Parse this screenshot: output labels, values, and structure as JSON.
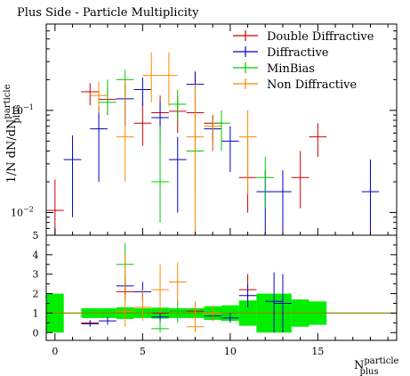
{
  "chart_data": [
    {
      "type": "scatter",
      "title": "Plus Side - Particle Multiplicity",
      "ylabel": "1/N dN/dN",
      "ylabel_sup": "particle",
      "ylabel_sub": "plus",
      "yscale": "log",
      "ylim": [
        0.006,
        0.7
      ],
      "xlim": [
        -0.5,
        19.5
      ],
      "yticks": [
        {
          "value": 0.1,
          "label": "10",
          "exp": "−1"
        },
        {
          "value": 0.01,
          "label": "10",
          "exp": "−2"
        }
      ],
      "legend_position": "top-right",
      "series": [
        {
          "name": "Double Diffractive",
          "color": "#cc0000",
          "points": [
            {
              "x": 0,
              "y": 0.0105,
              "ylo": 0.005,
              "yhi": 0.021
            },
            {
              "x": 2,
              "y": 0.152,
              "ylo": 0.112,
              "yhi": 0.185
            },
            {
              "x": 3,
              "y": 0.128,
              "ylo": 0.09,
              "yhi": 0.165
            },
            {
              "x": 5,
              "y": 0.075,
              "ylo": 0.045,
              "yhi": 0.12
            },
            {
              "x": 6,
              "y": 0.095,
              "ylo": 0.055,
              "yhi": 0.14
            },
            {
              "x": 7,
              "y": 0.098,
              "ylo": 0.06,
              "yhi": 0.14
            },
            {
              "x": 8,
              "y": 0.095,
              "ylo": 0.04,
              "yhi": 0.24
            },
            {
              "x": 9,
              "y": 0.075,
              "ylo": 0.05,
              "yhi": 0.09
            },
            {
              "x": 11,
              "y": 0.022,
              "ylo": 0.01,
              "yhi": 0.055
            },
            {
              "x": 14,
              "y": 0.022,
              "ylo": 0.011,
              "yhi": 0.04
            },
            {
              "x": 15,
              "y": 0.055,
              "ylo": 0.035,
              "yhi": 0.075
            }
          ]
        },
        {
          "name": "Diffractive",
          "color": "#0000cc",
          "points": [
            {
              "x": 1,
              "y": 0.033,
              "ylo": 0.009,
              "yhi": 0.057
            },
            {
              "x": 2.5,
              "y": 0.066,
              "ylo": 0.02,
              "yhi": 0.11
            },
            {
              "x": 4,
              "y": 0.13,
              "ylo": 0.07,
              "yhi": 0.18
            },
            {
              "x": 5,
              "y": 0.16,
              "ylo": 0.11,
              "yhi": 0.21
            },
            {
              "x": 6,
              "y": 0.085,
              "ylo": 0.045,
              "yhi": 0.12
            },
            {
              "x": 7,
              "y": 0.033,
              "ylo": 0.01,
              "yhi": 0.055
            },
            {
              "x": 8,
              "y": 0.18,
              "ylo": 0.12,
              "yhi": 0.24
            },
            {
              "x": 9,
              "y": 0.066,
              "ylo": 0.04,
              "yhi": 0.09
            },
            {
              "x": 10,
              "y": 0.05,
              "ylo": 0.025,
              "yhi": 0.07
            },
            {
              "x": 12,
              "y": 0.016,
              "ylo": 0.006,
              "yhi": 0.026
            },
            {
              "x": 13,
              "y": 0.016,
              "ylo": 0.006,
              "yhi": 0.026
            },
            {
              "x": 18,
              "y": 0.016,
              "ylo": 0.006,
              "yhi": 0.033
            }
          ]
        },
        {
          "name": "MinBias",
          "color": "#00cc00",
          "points": [
            {
              "x": 3,
              "y": 0.12,
              "ylo": 0.09,
              "yhi": 0.2
            },
            {
              "x": 4,
              "y": 0.2,
              "ylo": 0.12,
              "yhi": 0.25
            },
            {
              "x": 6,
              "y": 0.02,
              "ylo": 0.008,
              "yhi": 0.07
            },
            {
              "x": 7,
              "y": 0.115,
              "ylo": 0.08,
              "yhi": 0.16
            },
            {
              "x": 8,
              "y": 0.04,
              "ylo": 0.015,
              "yhi": 0.075
            },
            {
              "x": 9.5,
              "y": 0.075,
              "ylo": 0.04,
              "yhi": 0.1
            },
            {
              "x": 12,
              "y": 0.022,
              "ylo": 0.011,
              "yhi": 0.035
            }
          ]
        },
        {
          "name": "Non Diffractive",
          "color": "#ff8800",
          "points": [
            {
              "x": 2.5,
              "y": 0.14,
              "ylo": 0.095,
              "yhi": 0.19
            },
            {
              "x": 4,
              "y": 0.055,
              "ylo": 0.02,
              "yhi": 0.2
            },
            {
              "x": 5.5,
              "y": 0.22,
              "ylo": 0.12,
              "yhi": 0.37
            },
            {
              "x": 6.5,
              "y": 0.22,
              "ylo": 0.11,
              "yhi": 0.37
            },
            {
              "x": 8,
              "y": 0.055,
              "ylo": 0.006,
              "yhi": 0.18
            },
            {
              "x": 9,
              "y": 0.07,
              "ylo": 0.04,
              "yhi": 0.09
            },
            {
              "x": 11,
              "y": 0.055,
              "ylo": 0.015,
              "yhi": 0.1
            }
          ]
        }
      ]
    },
    {
      "type": "scatter",
      "xlabel": "N",
      "xlabel_sup": "particle",
      "xlabel_sub": "plus",
      "ylim": [
        -0.4,
        5
      ],
      "xlim": [
        -0.5,
        19.5
      ],
      "xticks": [
        0,
        5,
        10,
        15
      ],
      "yticks": [
        0,
        1,
        2,
        3,
        4,
        5
      ],
      "reference_line": 1,
      "reference_color": "#8a8a00",
      "band": {
        "color": "#00ee00",
        "segments": [
          {
            "x0": -0.5,
            "x1": 0.5,
            "lo": 0.0,
            "hi": 2.0
          },
          {
            "x0": 1.5,
            "x1": 2.5,
            "lo": 0.75,
            "hi": 1.25
          },
          {
            "x0": 2.5,
            "x1": 3.5,
            "lo": 0.75,
            "hi": 1.25
          },
          {
            "x0": 3.5,
            "x1": 4.5,
            "lo": 0.7,
            "hi": 1.3
          },
          {
            "x0": 4.5,
            "x1": 5.5,
            "lo": 0.75,
            "hi": 1.25
          },
          {
            "x0": 5.5,
            "x1": 6.5,
            "lo": 0.72,
            "hi": 1.28
          },
          {
            "x0": 6.5,
            "x1": 7.5,
            "lo": 0.75,
            "hi": 1.25
          },
          {
            "x0": 7.5,
            "x1": 8.5,
            "lo": 0.75,
            "hi": 1.25
          },
          {
            "x0": 8.5,
            "x1": 9.5,
            "lo": 0.65,
            "hi": 1.35
          },
          {
            "x0": 9.5,
            "x1": 10.5,
            "lo": 0.6,
            "hi": 1.4
          },
          {
            "x0": 10.5,
            "x1": 11.5,
            "lo": 0.35,
            "hi": 1.65
          },
          {
            "x0": 11.5,
            "x1": 12.5,
            "lo": 0.0,
            "hi": 2.0
          },
          {
            "x0": 12.5,
            "x1": 13.5,
            "lo": 0.0,
            "hi": 2.0
          },
          {
            "x0": 13.5,
            "x1": 14.5,
            "lo": 0.3,
            "hi": 1.7
          },
          {
            "x0": 14.5,
            "x1": 15.5,
            "lo": 0.4,
            "hi": 1.6
          }
        ]
      },
      "series": [
        {
          "name": "Double Diffractive",
          "color": "#cc0000",
          "points": [
            {
              "x": 2,
              "y": 0.5,
              "ylo": 0.35,
              "yhi": 0.65
            },
            {
              "x": 4,
              "y": 2.1,
              "ylo": 1.7,
              "yhi": 2.6
            },
            {
              "x": 6,
              "y": 1.0,
              "ylo": 0.7,
              "yhi": 1.3
            },
            {
              "x": 8,
              "y": 1.1,
              "ylo": 0.7,
              "yhi": 1.5
            },
            {
              "x": 11,
              "y": 2.2,
              "ylo": 1.4,
              "yhi": 3.0
            }
          ]
        },
        {
          "name": "Diffractive",
          "color": "#0000cc",
          "points": [
            {
              "x": 2,
              "y": 0.45,
              "ylo": 0.3,
              "yhi": 0.6
            },
            {
              "x": 3,
              "y": 0.6,
              "ylo": 0.4,
              "yhi": 0.8
            },
            {
              "x": 4,
              "y": 2.4,
              "ylo": 1.9,
              "yhi": 2.9
            },
            {
              "x": 5,
              "y": 2.1,
              "ylo": 1.6,
              "yhi": 2.6
            },
            {
              "x": 6,
              "y": 0.8,
              "ylo": 0.5,
              "yhi": 1.1
            },
            {
              "x": 9,
              "y": 0.85,
              "ylo": 0.6,
              "yhi": 1.1
            },
            {
              "x": 10,
              "y": 0.75,
              "ylo": 0.5,
              "yhi": 1.0
            },
            {
              "x": 11,
              "y": 1.9,
              "ylo": 1.3,
              "yhi": 2.5
            },
            {
              "x": 12.5,
              "y": 1.6,
              "ylo": 0.0,
              "yhi": 3.1
            },
            {
              "x": 13,
              "y": 1.5,
              "ylo": 0.0,
              "yhi": 3.0
            }
          ]
        },
        {
          "name": "MinBias",
          "color": "#00cc00",
          "points": [
            {
              "x": 4,
              "y": 3.5,
              "ylo": 2.6,
              "yhi": 4.6
            },
            {
              "x": 6,
              "y": 0.2,
              "ylo": 0.0,
              "yhi": 0.6
            },
            {
              "x": 7,
              "y": 1.1,
              "ylo": 0.5,
              "yhi": 1.7
            },
            {
              "x": 9.5,
              "y": 0.9,
              "ylo": 0.6,
              "yhi": 1.2
            }
          ]
        },
        {
          "name": "Non Diffractive",
          "color": "#ff8800",
          "points": [
            {
              "x": 4,
              "y": 1.1,
              "ylo": 0.3,
              "yhi": 4.0
            },
            {
              "x": 5,
              "y": 1.3,
              "ylo": 0.6,
              "yhi": 2.2
            },
            {
              "x": 6,
              "y": 2.2,
              "ylo": 1.0,
              "yhi": 3.5
            },
            {
              "x": 7,
              "y": 2.6,
              "ylo": 1.5,
              "yhi": 3.6
            },
            {
              "x": 8,
              "y": 0.3,
              "ylo": 0.0,
              "yhi": 1.6
            },
            {
              "x": 9,
              "y": 1.0,
              "ylo": 0.6,
              "yhi": 1.4
            }
          ]
        }
      ]
    }
  ]
}
